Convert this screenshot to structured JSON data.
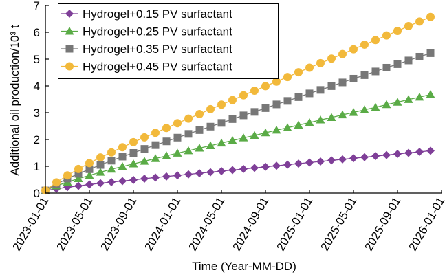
{
  "chart_data": {
    "type": "line",
    "title": "",
    "xlabel": "Time (Year-MM-DD)",
    "ylabel": "Additional oil production/10³ t",
    "ylim": [
      0,
      7
    ],
    "yticks": [
      "0",
      "1",
      "2",
      "3",
      "4",
      "5",
      "6",
      "7"
    ],
    "xticks": [
      "2023-01-01",
      "2023-05-01",
      "2023-09-01",
      "2024-01-01",
      "2024-05-01",
      "2024-09-01",
      "2025-01-01",
      "2025-05-01",
      "2025-09-01",
      "2026-01-01"
    ],
    "x_note": "monthly points from 2023-01 to 2025-12 (index = months since 2023-01-01)",
    "legend_position": "top-left",
    "grid": false,
    "series": [
      {
        "name": "Hydrogel+0.15 PV surfactant",
        "color": "#7f3f98",
        "marker": "diamond",
        "values": [
          0.1,
          0.16,
          0.22,
          0.27,
          0.32,
          0.37,
          0.41,
          0.45,
          0.49,
          0.54,
          0.58,
          0.62,
          0.66,
          0.7,
          0.74,
          0.78,
          0.82,
          0.86,
          0.9,
          0.94,
          0.98,
          1.02,
          1.06,
          1.1,
          1.14,
          1.18,
          1.22,
          1.26,
          1.3,
          1.34,
          1.38,
          1.42,
          1.46,
          1.5,
          1.54,
          1.58
        ]
      },
      {
        "name": "Hydrogel+0.25 PV surfactant",
        "color": "#5aab46",
        "marker": "triangle",
        "values": [
          0.1,
          0.27,
          0.41,
          0.54,
          0.66,
          0.78,
          0.89,
          0.99,
          1.09,
          1.19,
          1.29,
          1.39,
          1.49,
          1.58,
          1.68,
          1.77,
          1.87,
          1.96,
          2.06,
          2.15,
          2.25,
          2.35,
          2.44,
          2.54,
          2.63,
          2.73,
          2.82,
          2.92,
          3.01,
          3.11,
          3.2,
          3.3,
          3.39,
          3.49,
          3.58,
          3.68
        ]
      },
      {
        "name": "Hydrogel+0.35 PV surfactant",
        "color": "#777777",
        "marker": "square",
        "values": [
          0.1,
          0.33,
          0.54,
          0.72,
          0.89,
          1.05,
          1.21,
          1.36,
          1.5,
          1.65,
          1.79,
          1.93,
          2.07,
          2.21,
          2.35,
          2.48,
          2.62,
          2.76,
          2.9,
          3.03,
          3.17,
          3.31,
          3.44,
          3.58,
          3.72,
          3.85,
          3.99,
          4.13,
          4.27,
          4.4,
          4.54,
          4.68,
          4.81,
          4.95,
          5.09,
          5.22
        ]
      },
      {
        "name": "Hydrogel+0.45 PV surfactant",
        "color": "#f2b93b",
        "marker": "circle",
        "values": [
          0.1,
          0.4,
          0.66,
          0.9,
          1.12,
          1.33,
          1.52,
          1.71,
          1.9,
          2.08,
          2.25,
          2.43,
          2.61,
          2.78,
          2.95,
          3.13,
          3.3,
          3.47,
          3.65,
          3.82,
          3.99,
          4.16,
          4.33,
          4.51,
          4.68,
          4.85,
          5.02,
          5.19,
          5.37,
          5.54,
          5.71,
          5.88,
          6.05,
          6.23,
          6.4,
          6.57
        ]
      }
    ]
  }
}
